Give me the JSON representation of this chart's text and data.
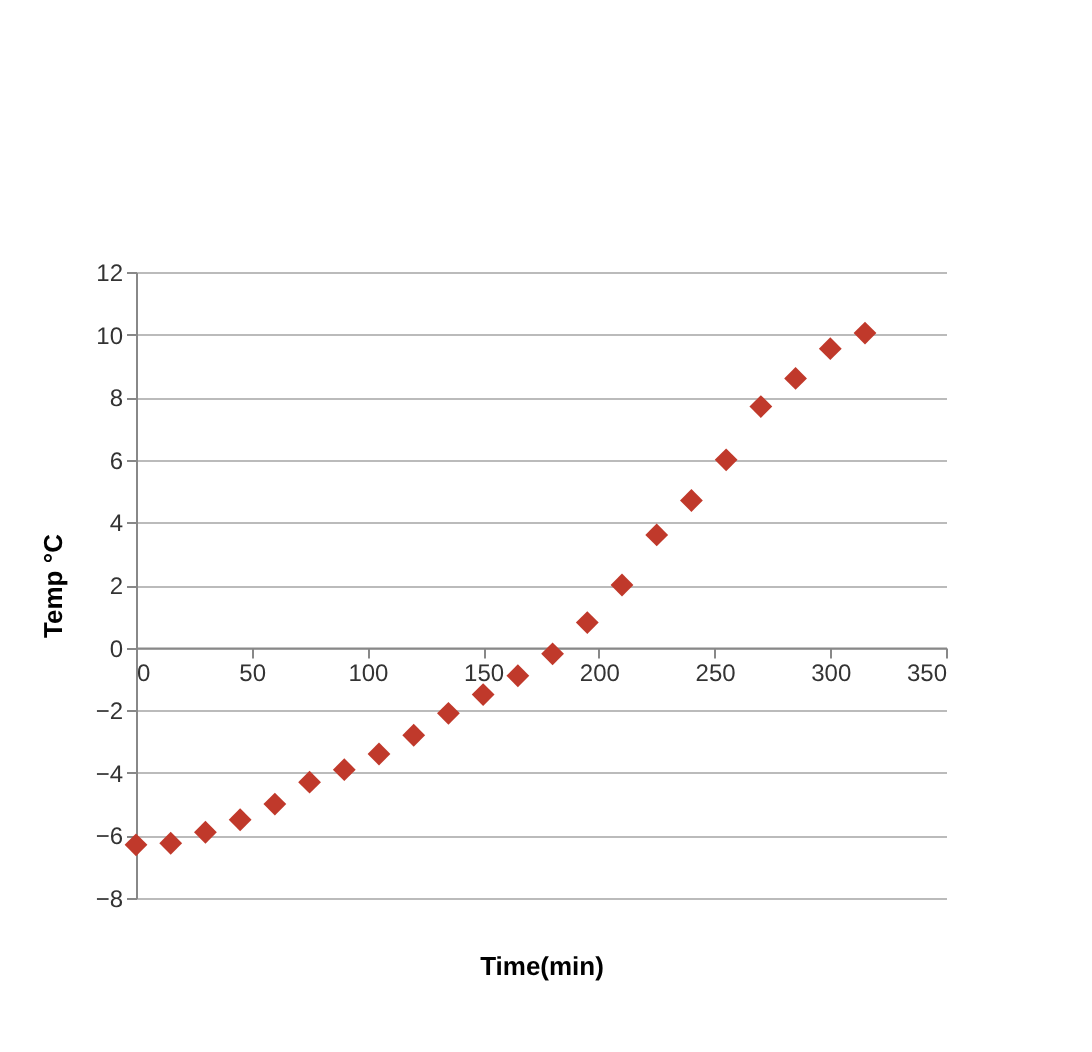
{
  "chart_data": {
    "type": "scatter",
    "xlabel": "Time(min)",
    "ylabel": "Temp °C",
    "x": [
      0,
      15,
      30,
      45,
      60,
      75,
      90,
      105,
      120,
      135,
      150,
      165,
      180,
      195,
      210,
      225,
      240,
      255,
      270,
      285,
      300,
      315
    ],
    "series": [
      {
        "color": "#c0392b",
        "values": [
          -6.3,
          -6.25,
          -5.9,
          -5.5,
          -5.0,
          -4.3,
          -3.9,
          -3.4,
          -2.8,
          -2.1,
          -1.5,
          -0.9,
          -0.2,
          0.8,
          2.0,
          3.6,
          4.7,
          6.0,
          7.7,
          8.6,
          9.55,
          10.05
        ]
      }
    ],
    "xlim": [
      0,
      350
    ],
    "xticks": [
      0,
      50,
      100,
      150,
      200,
      250,
      300,
      350
    ],
    "ylim": [
      -8,
      12
    ],
    "yticks": [
      -8,
      -6,
      -4,
      -2,
      0,
      2,
      4,
      6,
      8,
      10,
      12
    ],
    "grid": "y",
    "marker": "diamond"
  }
}
